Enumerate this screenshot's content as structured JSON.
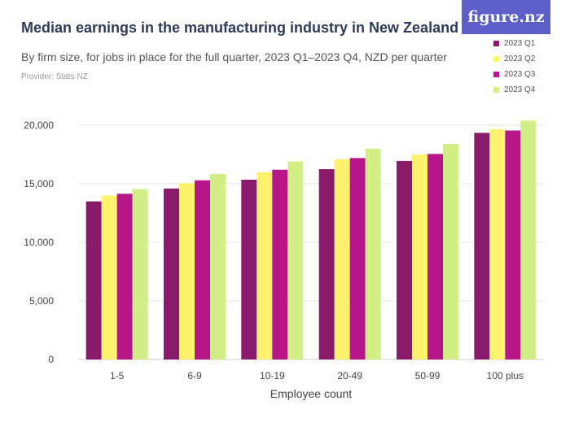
{
  "header": {
    "title": "Median earnings in the manufacturing industry in New Zealand",
    "subtitle": "By firm size, for jobs in place for the full quarter, 2023 Q1–2023 Q4, NZD per quarter",
    "provider": "Provider: Stats NZ",
    "logo_text": "figure.nz"
  },
  "colors": {
    "q1": "#8a1a6b",
    "q2": "#fff36e",
    "q3": "#b8168a",
    "q4": "#d2ee86",
    "logo_bg": "#5b5fc7"
  },
  "chart_data": {
    "type": "bar",
    "categories": [
      "1-5",
      "6-9",
      "10-19",
      "20-49",
      "50-99",
      "100 plus"
    ],
    "series": [
      {
        "name": "2023 Q1",
        "values": [
          13500,
          14600,
          15350,
          16250,
          16950,
          19350
        ]
      },
      {
        "name": "2023 Q2",
        "values": [
          14000,
          15050,
          16000,
          17100,
          17500,
          19650
        ]
      },
      {
        "name": "2023 Q3",
        "values": [
          14150,
          15300,
          16200,
          17200,
          17550,
          19550
        ]
      },
      {
        "name": "2023 Q4",
        "values": [
          14550,
          15850,
          16900,
          18000,
          18400,
          20400
        ]
      }
    ],
    "xlabel": "Employee count",
    "ylabel": "",
    "ylim": [
      0,
      20000
    ],
    "yticks": [
      0,
      5000,
      10000,
      15000,
      20000
    ],
    "ytick_labels": [
      "0",
      "5,000",
      "10,000",
      "15,000",
      "20,000"
    ],
    "grid": true,
    "legend_position": "top-right"
  }
}
